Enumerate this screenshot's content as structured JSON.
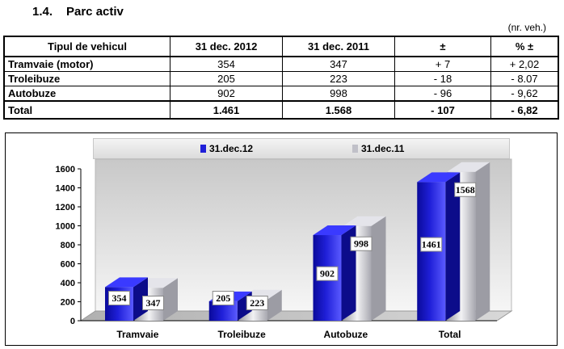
{
  "section": {
    "number": "1.4.",
    "title": "Parc activ"
  },
  "unit_note": "(nr. veh.)",
  "table": {
    "headers": [
      "Tipul de vehicul",
      "31 dec. 2012",
      "31 dec. 2011",
      "±",
      "% ±"
    ],
    "rows": [
      [
        "Tramvaie (motor)",
        "354",
        "347",
        "+ 7",
        "+ 2,02"
      ],
      [
        "Troleibuze",
        "205",
        "223",
        "- 18",
        "- 8.07"
      ],
      [
        "Autobuze",
        "902",
        "998",
        "- 96",
        "- 9,62"
      ]
    ],
    "total": [
      "Total",
      "1.461",
      "1.568",
      "- 107",
      "- 6,82"
    ]
  },
  "legend": {
    "series1": "31.dec.12",
    "series2": "31.dec.11"
  },
  "colors": {
    "series1": "#1f1fd8",
    "series2": "#c0c0c8",
    "label_bg": "#ffffff"
  },
  "chart_data": {
    "type": "bar",
    "categories": [
      "Tramvaie",
      "Troleibuze",
      "Autobuze",
      "Total"
    ],
    "series": [
      {
        "name": "31.dec.12",
        "values": [
          354,
          205,
          902,
          1461
        ]
      },
      {
        "name": "31.dec.11",
        "values": [
          347,
          223,
          998,
          1568
        ]
      }
    ],
    "ylim": [
      0,
      1600
    ],
    "yticks": [
      "0",
      "200",
      "400",
      "600",
      "800",
      "1000",
      "1200",
      "1400",
      "1600"
    ],
    "grid": false,
    "legend_position": "top",
    "style": "3d-cylinder-gradient"
  }
}
